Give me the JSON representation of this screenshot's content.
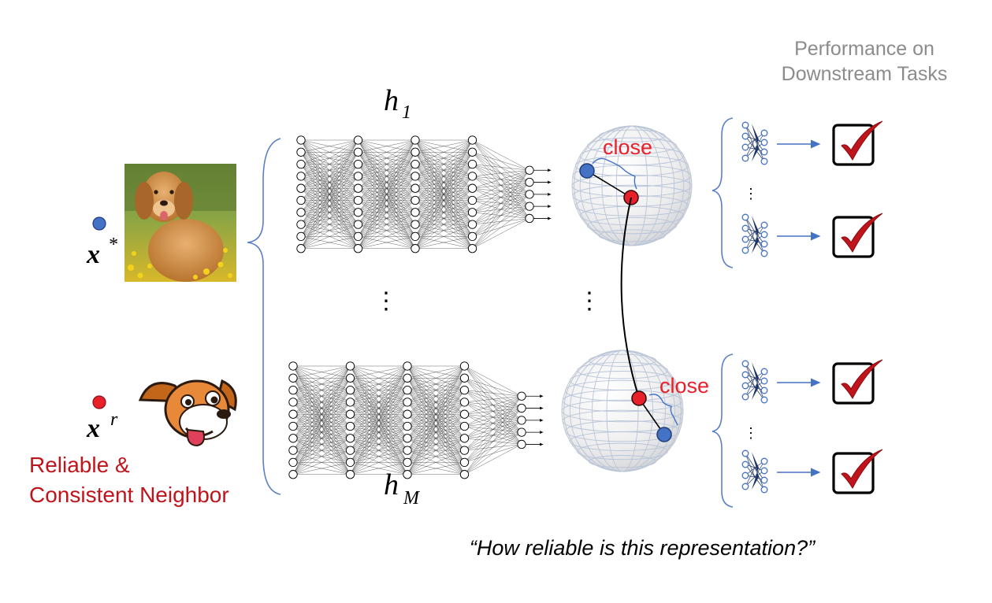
{
  "header": {
    "performance_line1": "Performance on",
    "performance_line2": "Downstream Tasks"
  },
  "labels": {
    "h_top_base": "h",
    "h_top_sub": "1",
    "h_bottom_base": "h",
    "h_bottom_sub": "M",
    "x_star_base": "x",
    "x_star_sup": "*",
    "x_r_base": "x",
    "x_r_sup": "r",
    "neighbor_line1": "Reliable &",
    "neighbor_line2": "Consistent Neighbor",
    "close_top": "close",
    "close_bottom": "close",
    "caption": "“How reliable is this representation?”",
    "vdots": "⋮"
  },
  "colors": {
    "blue_point": "#4472c4",
    "red_point": "#e8202a",
    "close_text": "#e8202a",
    "neighbor_text": "#c0141c",
    "header_text": "#8c8c8c",
    "brace": "#5b7fc4",
    "arrow": "#4472c4",
    "check": "#c0141c"
  },
  "icons": [
    "dog-photo",
    "cartoon-dog-icon",
    "neural-network-icon",
    "sphere-icon",
    "checkbox-icon",
    "mini-network-icon"
  ]
}
